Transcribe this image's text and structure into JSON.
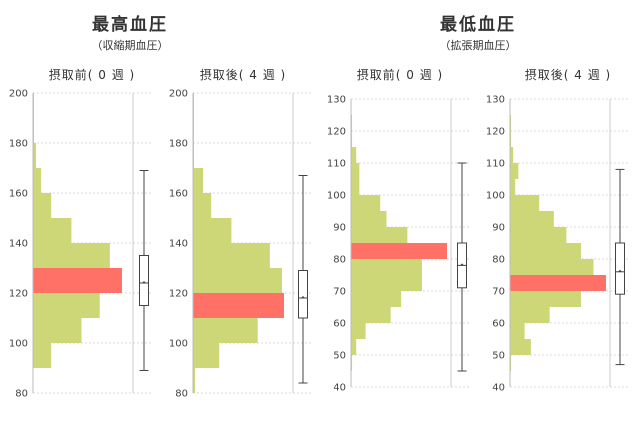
{
  "colors": {
    "bar": "#cdd777",
    "highlight": "#ff7066",
    "box_stroke": "#444444",
    "grid": "#d9d9d9"
  },
  "chart_data": [
    {
      "type": "bar",
      "group_title": "最高血圧",
      "group_subtitle": "（収縮期血圧）",
      "title": "摂取前( 0 週 )",
      "orientation": "horizontal-histogram",
      "ylim": [
        80,
        200
      ],
      "yticks": [
        80,
        100,
        120,
        140,
        160,
        180,
        200
      ],
      "bins": [
        {
          "from": 80,
          "to": 90,
          "value": 0
        },
        {
          "from": 90,
          "to": 100,
          "value": 18
        },
        {
          "from": 100,
          "to": 110,
          "value": 48
        },
        {
          "from": 110,
          "to": 120,
          "value": 66
        },
        {
          "from": 120,
          "to": 130,
          "value": 88,
          "highlight": true
        },
        {
          "from": 130,
          "to": 140,
          "value": 76
        },
        {
          "from": 140,
          "to": 150,
          "value": 38
        },
        {
          "from": 150,
          "to": 160,
          "value": 18
        },
        {
          "from": 160,
          "to": 170,
          "value": 8
        },
        {
          "from": 170,
          "to": 180,
          "value": 3
        },
        {
          "from": 180,
          "to": 190,
          "value": 1
        },
        {
          "from": 190,
          "to": 200,
          "value": 1
        }
      ],
      "box": {
        "min": 89,
        "q1": 115,
        "median": 124,
        "mean": 124,
        "q3": 135,
        "max": 169
      }
    },
    {
      "type": "bar",
      "title": "摂取後( 4 週 )",
      "orientation": "horizontal-histogram",
      "ylim": [
        80,
        200
      ],
      "yticks": [
        80,
        100,
        120,
        140,
        160,
        180,
        200
      ],
      "bins": [
        {
          "from": 80,
          "to": 90,
          "value": 2
        },
        {
          "from": 90,
          "to": 100,
          "value": 26
        },
        {
          "from": 100,
          "to": 110,
          "value": 64
        },
        {
          "from": 110,
          "to": 120,
          "value": 90,
          "highlight": true
        },
        {
          "from": 120,
          "to": 130,
          "value": 88
        },
        {
          "from": 130,
          "to": 140,
          "value": 76
        },
        {
          "from": 140,
          "to": 150,
          "value": 38
        },
        {
          "from": 150,
          "to": 160,
          "value": 18
        },
        {
          "from": 160,
          "to": 170,
          "value": 10
        },
        {
          "from": 170,
          "to": 180,
          "value": 1
        },
        {
          "from": 180,
          "to": 190,
          "value": 1
        },
        {
          "from": 190,
          "to": 200,
          "value": 1
        }
      ],
      "box": {
        "min": 84,
        "q1": 110,
        "median": 118,
        "mean": 118,
        "q3": 129,
        "max": 167
      }
    },
    {
      "type": "bar",
      "group_title": "最低血圧",
      "group_subtitle": "（拡張期血圧）",
      "title": "摂取前( 0 週 )",
      "orientation": "horizontal-histogram",
      "ylim": [
        40,
        130
      ],
      "yticks": [
        40,
        50,
        60,
        70,
        80,
        90,
        100,
        110,
        120,
        130
      ],
      "bins": [
        {
          "from": 40,
          "to": 45,
          "value": 0
        },
        {
          "from": 45,
          "to": 50,
          "value": 1
        },
        {
          "from": 50,
          "to": 55,
          "value": 5
        },
        {
          "from": 55,
          "to": 60,
          "value": 14
        },
        {
          "from": 60,
          "to": 65,
          "value": 38
        },
        {
          "from": 65,
          "to": 70,
          "value": 48
        },
        {
          "from": 70,
          "to": 75,
          "value": 68
        },
        {
          "from": 75,
          "to": 80,
          "value": 68
        },
        {
          "from": 80,
          "to": 85,
          "value": 92,
          "highlight": true
        },
        {
          "from": 85,
          "to": 90,
          "value": 54
        },
        {
          "from": 90,
          "to": 95,
          "value": 34
        },
        {
          "from": 95,
          "to": 100,
          "value": 28
        },
        {
          "from": 100,
          "to": 105,
          "value": 8
        },
        {
          "from": 105,
          "to": 110,
          "value": 8
        },
        {
          "from": 110,
          "to": 115,
          "value": 5
        },
        {
          "from": 115,
          "to": 120,
          "value": 1
        },
        {
          "from": 120,
          "to": 125,
          "value": 1
        },
        {
          "from": 125,
          "to": 130,
          "value": 0
        }
      ],
      "box": {
        "min": 45,
        "q1": 71,
        "median": 78,
        "mean": 78,
        "q3": 85,
        "max": 110
      }
    },
    {
      "type": "bar",
      "title": "摂取後( 4 週 )",
      "orientation": "horizontal-histogram",
      "ylim": [
        40,
        130
      ],
      "yticks": [
        40,
        50,
        60,
        70,
        80,
        90,
        100,
        110,
        120,
        130
      ],
      "bins": [
        {
          "from": 40,
          "to": 45,
          "value": 0
        },
        {
          "from": 45,
          "to": 50,
          "value": 1
        },
        {
          "from": 50,
          "to": 55,
          "value": 20
        },
        {
          "from": 55,
          "to": 60,
          "value": 14
        },
        {
          "from": 60,
          "to": 65,
          "value": 38
        },
        {
          "from": 65,
          "to": 70,
          "value": 68
        },
        {
          "from": 70,
          "to": 75,
          "value": 92,
          "highlight": true
        },
        {
          "from": 75,
          "to": 80,
          "value": 80
        },
        {
          "from": 80,
          "to": 85,
          "value": 68
        },
        {
          "from": 85,
          "to": 90,
          "value": 54
        },
        {
          "from": 90,
          "to": 95,
          "value": 42
        },
        {
          "from": 95,
          "to": 100,
          "value": 28
        },
        {
          "from": 100,
          "to": 105,
          "value": 5
        },
        {
          "from": 105,
          "to": 110,
          "value": 8
        },
        {
          "from": 110,
          "to": 115,
          "value": 3
        },
        {
          "from": 115,
          "to": 120,
          "value": 1
        },
        {
          "from": 120,
          "to": 125,
          "value": 1
        },
        {
          "from": 125,
          "to": 130,
          "value": 0
        }
      ],
      "box": {
        "min": 47,
        "q1": 69,
        "median": 76,
        "mean": 76,
        "q3": 85,
        "max": 108
      }
    }
  ]
}
